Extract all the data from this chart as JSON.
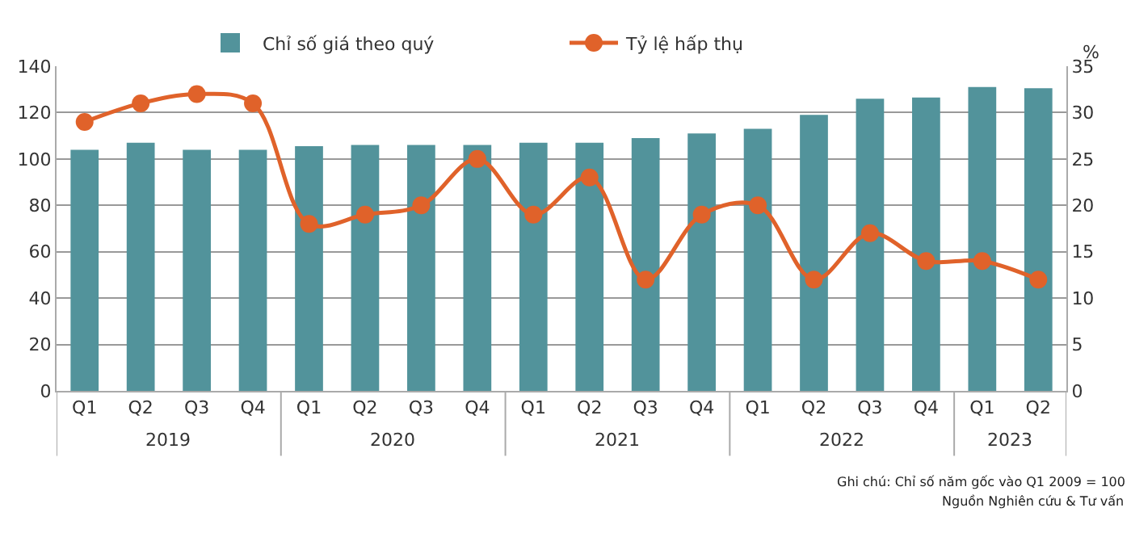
{
  "chart_data": {
    "type": "bar",
    "categories": [
      "Q1",
      "Q2",
      "Q3",
      "Q4",
      "Q1",
      "Q2",
      "Q3",
      "Q4",
      "Q1",
      "Q2",
      "Q3",
      "Q4",
      "Q1",
      "Q2",
      "Q3",
      "Q4",
      "Q1",
      "Q2"
    ],
    "series": [
      {
        "name": "Chỉ số giá theo quý",
        "color": "#52939b",
        "values": [
          104,
          107,
          104,
          104,
          105.5,
          106,
          106,
          106,
          107,
          107,
          109,
          111,
          113,
          119,
          126,
          126.5,
          131,
          130.5
        ]
      },
      {
        "name": "Tỷ lệ hấp thụ",
        "type": "line",
        "axis": "y2",
        "color": "#e0622a",
        "marker": "circle",
        "values": [
          29,
          31,
          32,
          31,
          18,
          19,
          20,
          25,
          19,
          23,
          12,
          19,
          20,
          12,
          17,
          14,
          14,
          12
        ]
      }
    ],
    "y2label": "%",
    "ylim": [
      0,
      140
    ],
    "yticks": [
      0,
      20,
      40,
      60,
      80,
      100,
      120,
      140
    ],
    "y2lim": [
      0,
      35
    ],
    "y2ticks": [
      0,
      5,
      10,
      15,
      20,
      25,
      30,
      35
    ],
    "grid": "y",
    "legend": "top",
    "annotations": [
      "2019",
      "2020",
      "2021",
      "2022",
      "2023",
      "Ghi chú: Chỉ số năm gốc vào Q1 2009 = 100",
      "Nguồn Nghiên cứu & Tư vấn"
    ]
  }
}
